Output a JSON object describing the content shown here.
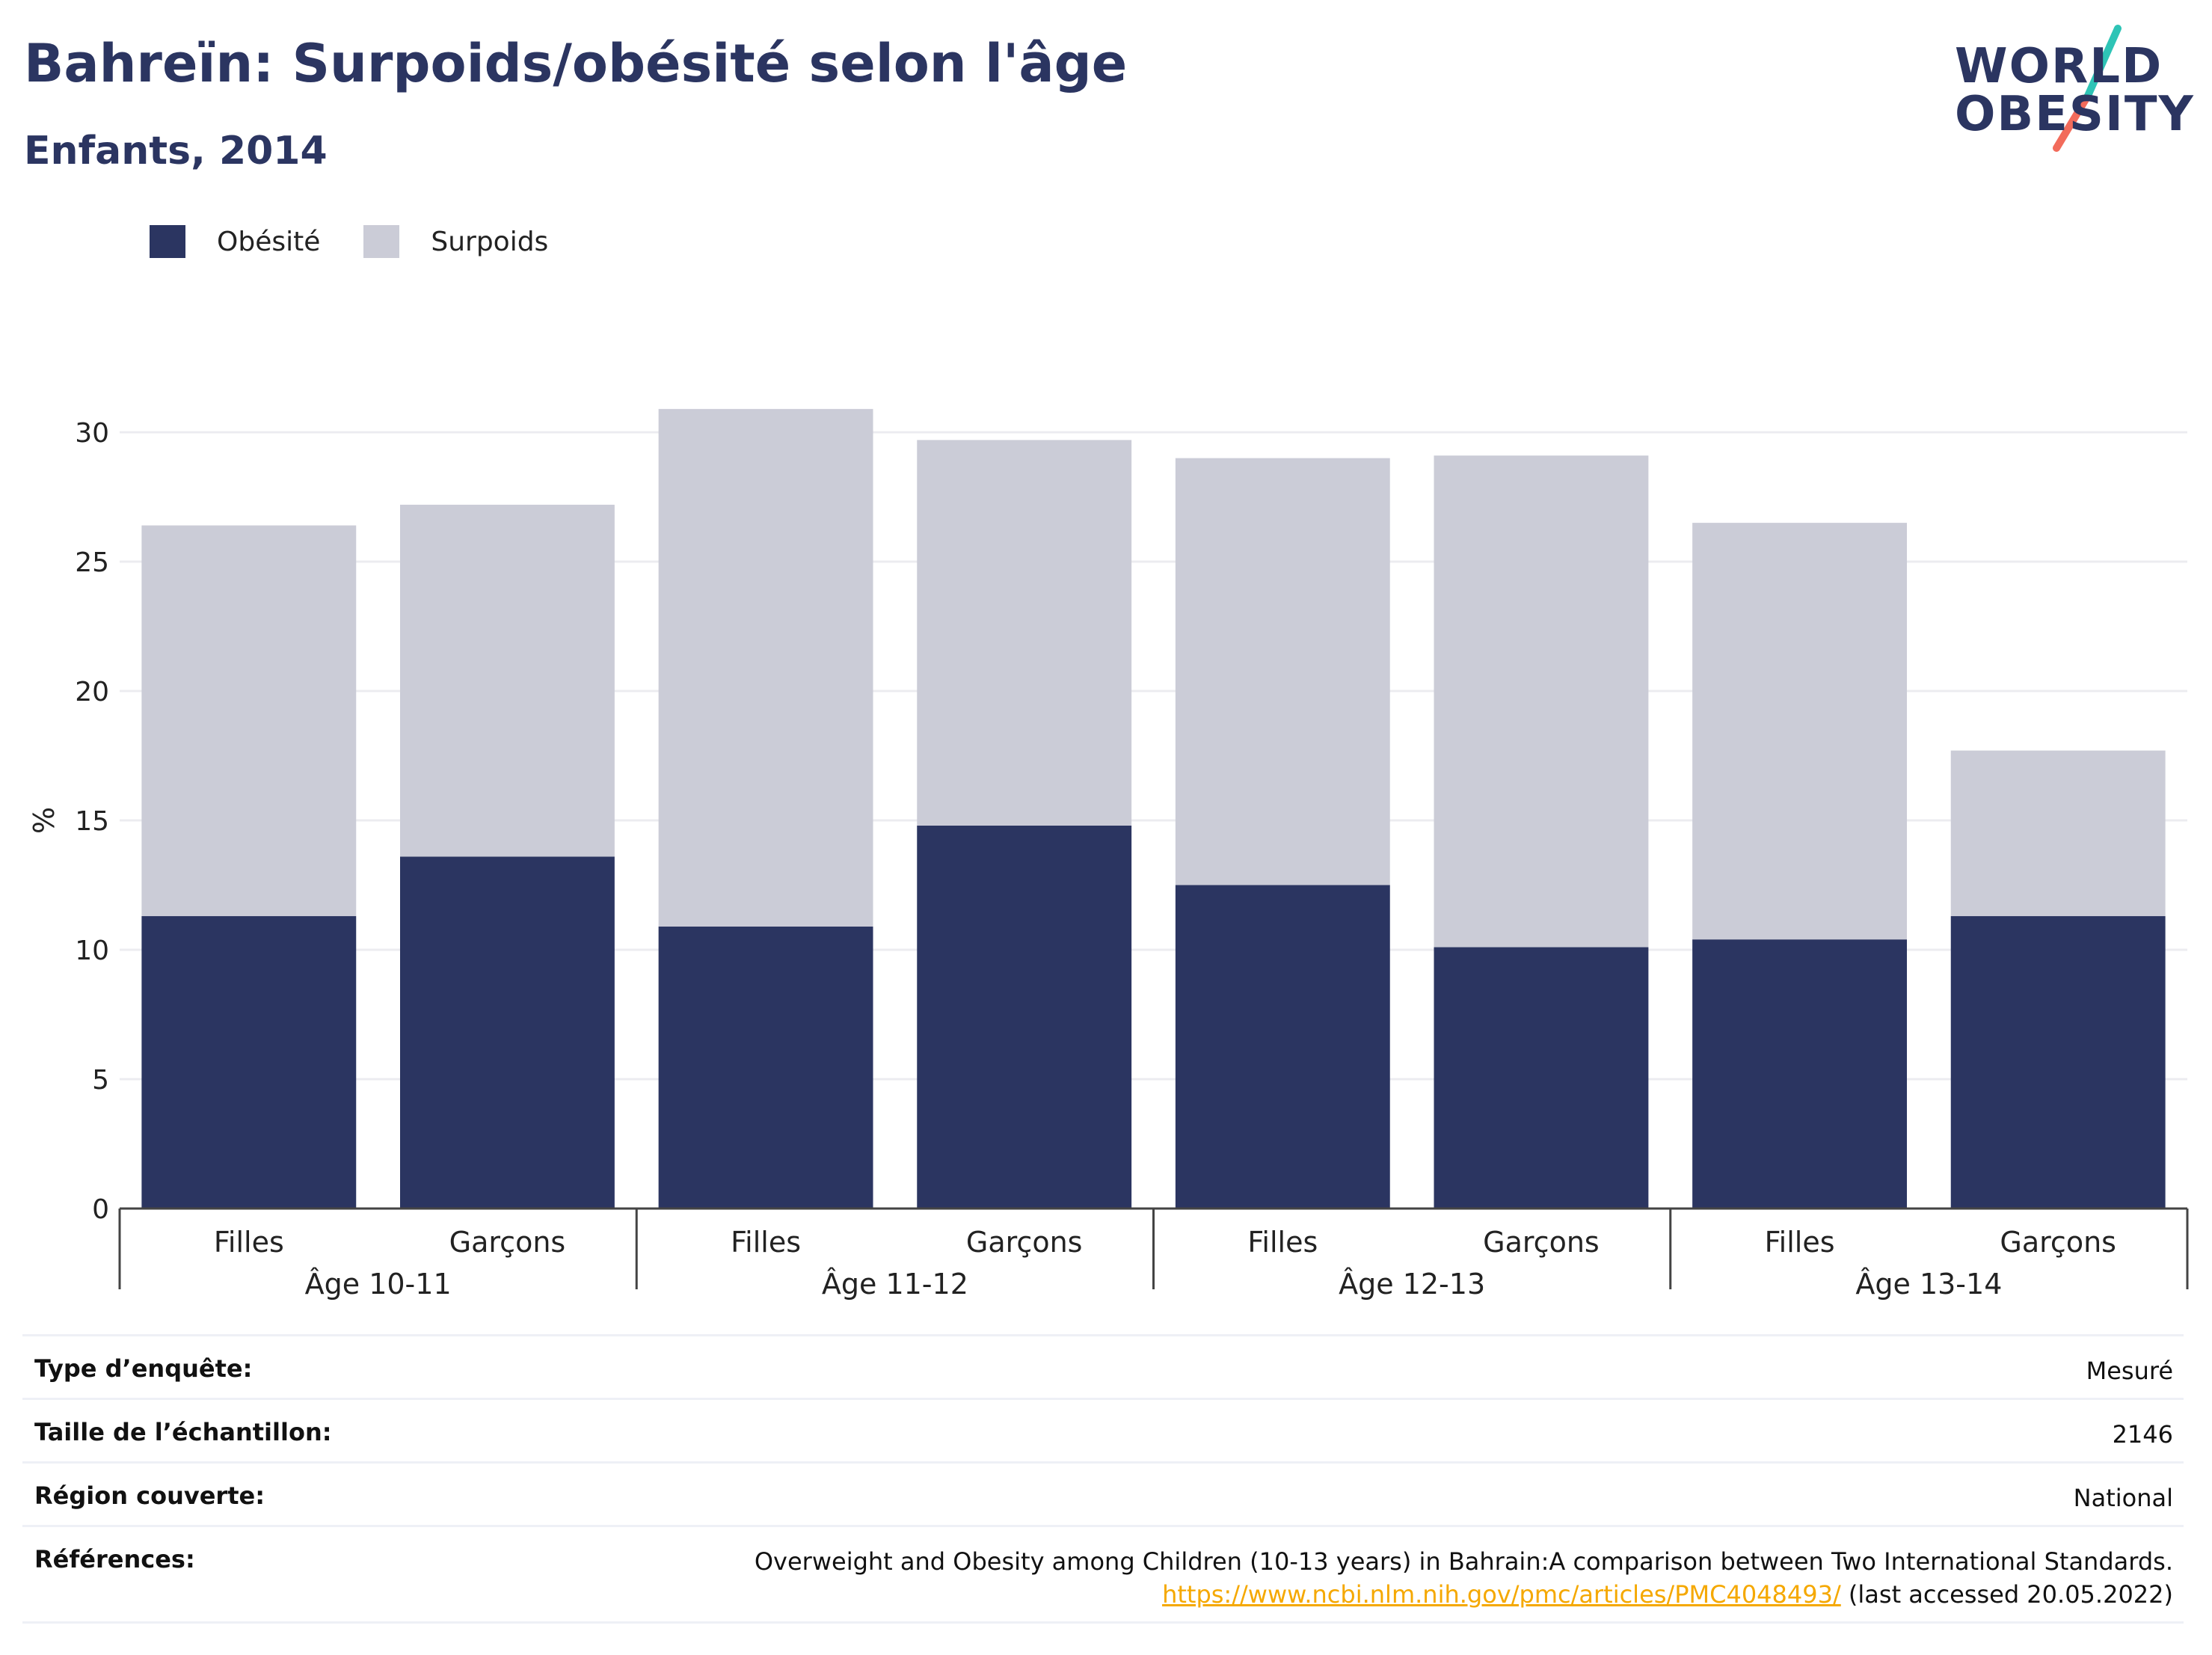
{
  "header": {
    "title": "Bahreïn: Surpoids/obésité selon l'âge",
    "subtitle": "Enfants, 2014"
  },
  "logo": {
    "line1": "WORLD",
    "line2": "OBESITY",
    "colors": {
      "text": "#2b3561",
      "slash_top": "#2ec4b6",
      "slash_bottom": "#f26b5b"
    }
  },
  "legend": [
    {
      "label": "Obésité",
      "color": "#2b3561"
    },
    {
      "label": "Surpoids",
      "color": "#cbccd7"
    }
  ],
  "chart_data": {
    "type": "bar",
    "stacked": true,
    "ylabel": "%",
    "ylim": [
      0,
      32
    ],
    "yticks": [
      0,
      5,
      10,
      15,
      20,
      25,
      30
    ],
    "grid": true,
    "legend_position": "top-left",
    "groups": [
      "Âge 10-11",
      "Âge 11-12",
      "Âge 12-13",
      "Âge 13-14"
    ],
    "categories": [
      "Filles",
      "Garçons",
      "Filles",
      "Garçons",
      "Filles",
      "Garçons",
      "Filles",
      "Garçons"
    ],
    "series": [
      {
        "name": "Obésité",
        "color": "#2b3561",
        "values": [
          11.3,
          13.6,
          10.9,
          14.8,
          12.5,
          10.1,
          10.4,
          11.3
        ]
      },
      {
        "name": "Surpoids",
        "color": "#cbccd7",
        "values": [
          15.1,
          13.6,
          20.0,
          14.9,
          16.5,
          19.0,
          16.1,
          6.4
        ]
      }
    ]
  },
  "meta": [
    {
      "key": "Type d’enquête:",
      "value": "Mesuré"
    },
    {
      "key": "Taille de l’échantillon:",
      "value": "2146"
    },
    {
      "key": "Région couverte:",
      "value": "National"
    },
    {
      "key": "Références:",
      "value": "Overweight and Obesity among Children (10-13 years) in Bahrain:A comparison between Two International Standards.",
      "link": "https://www.ncbi.nlm.nih.gov/pmc/articles/PMC4048493/",
      "link_suffix": " (last accessed 20.05.2022)"
    }
  ]
}
